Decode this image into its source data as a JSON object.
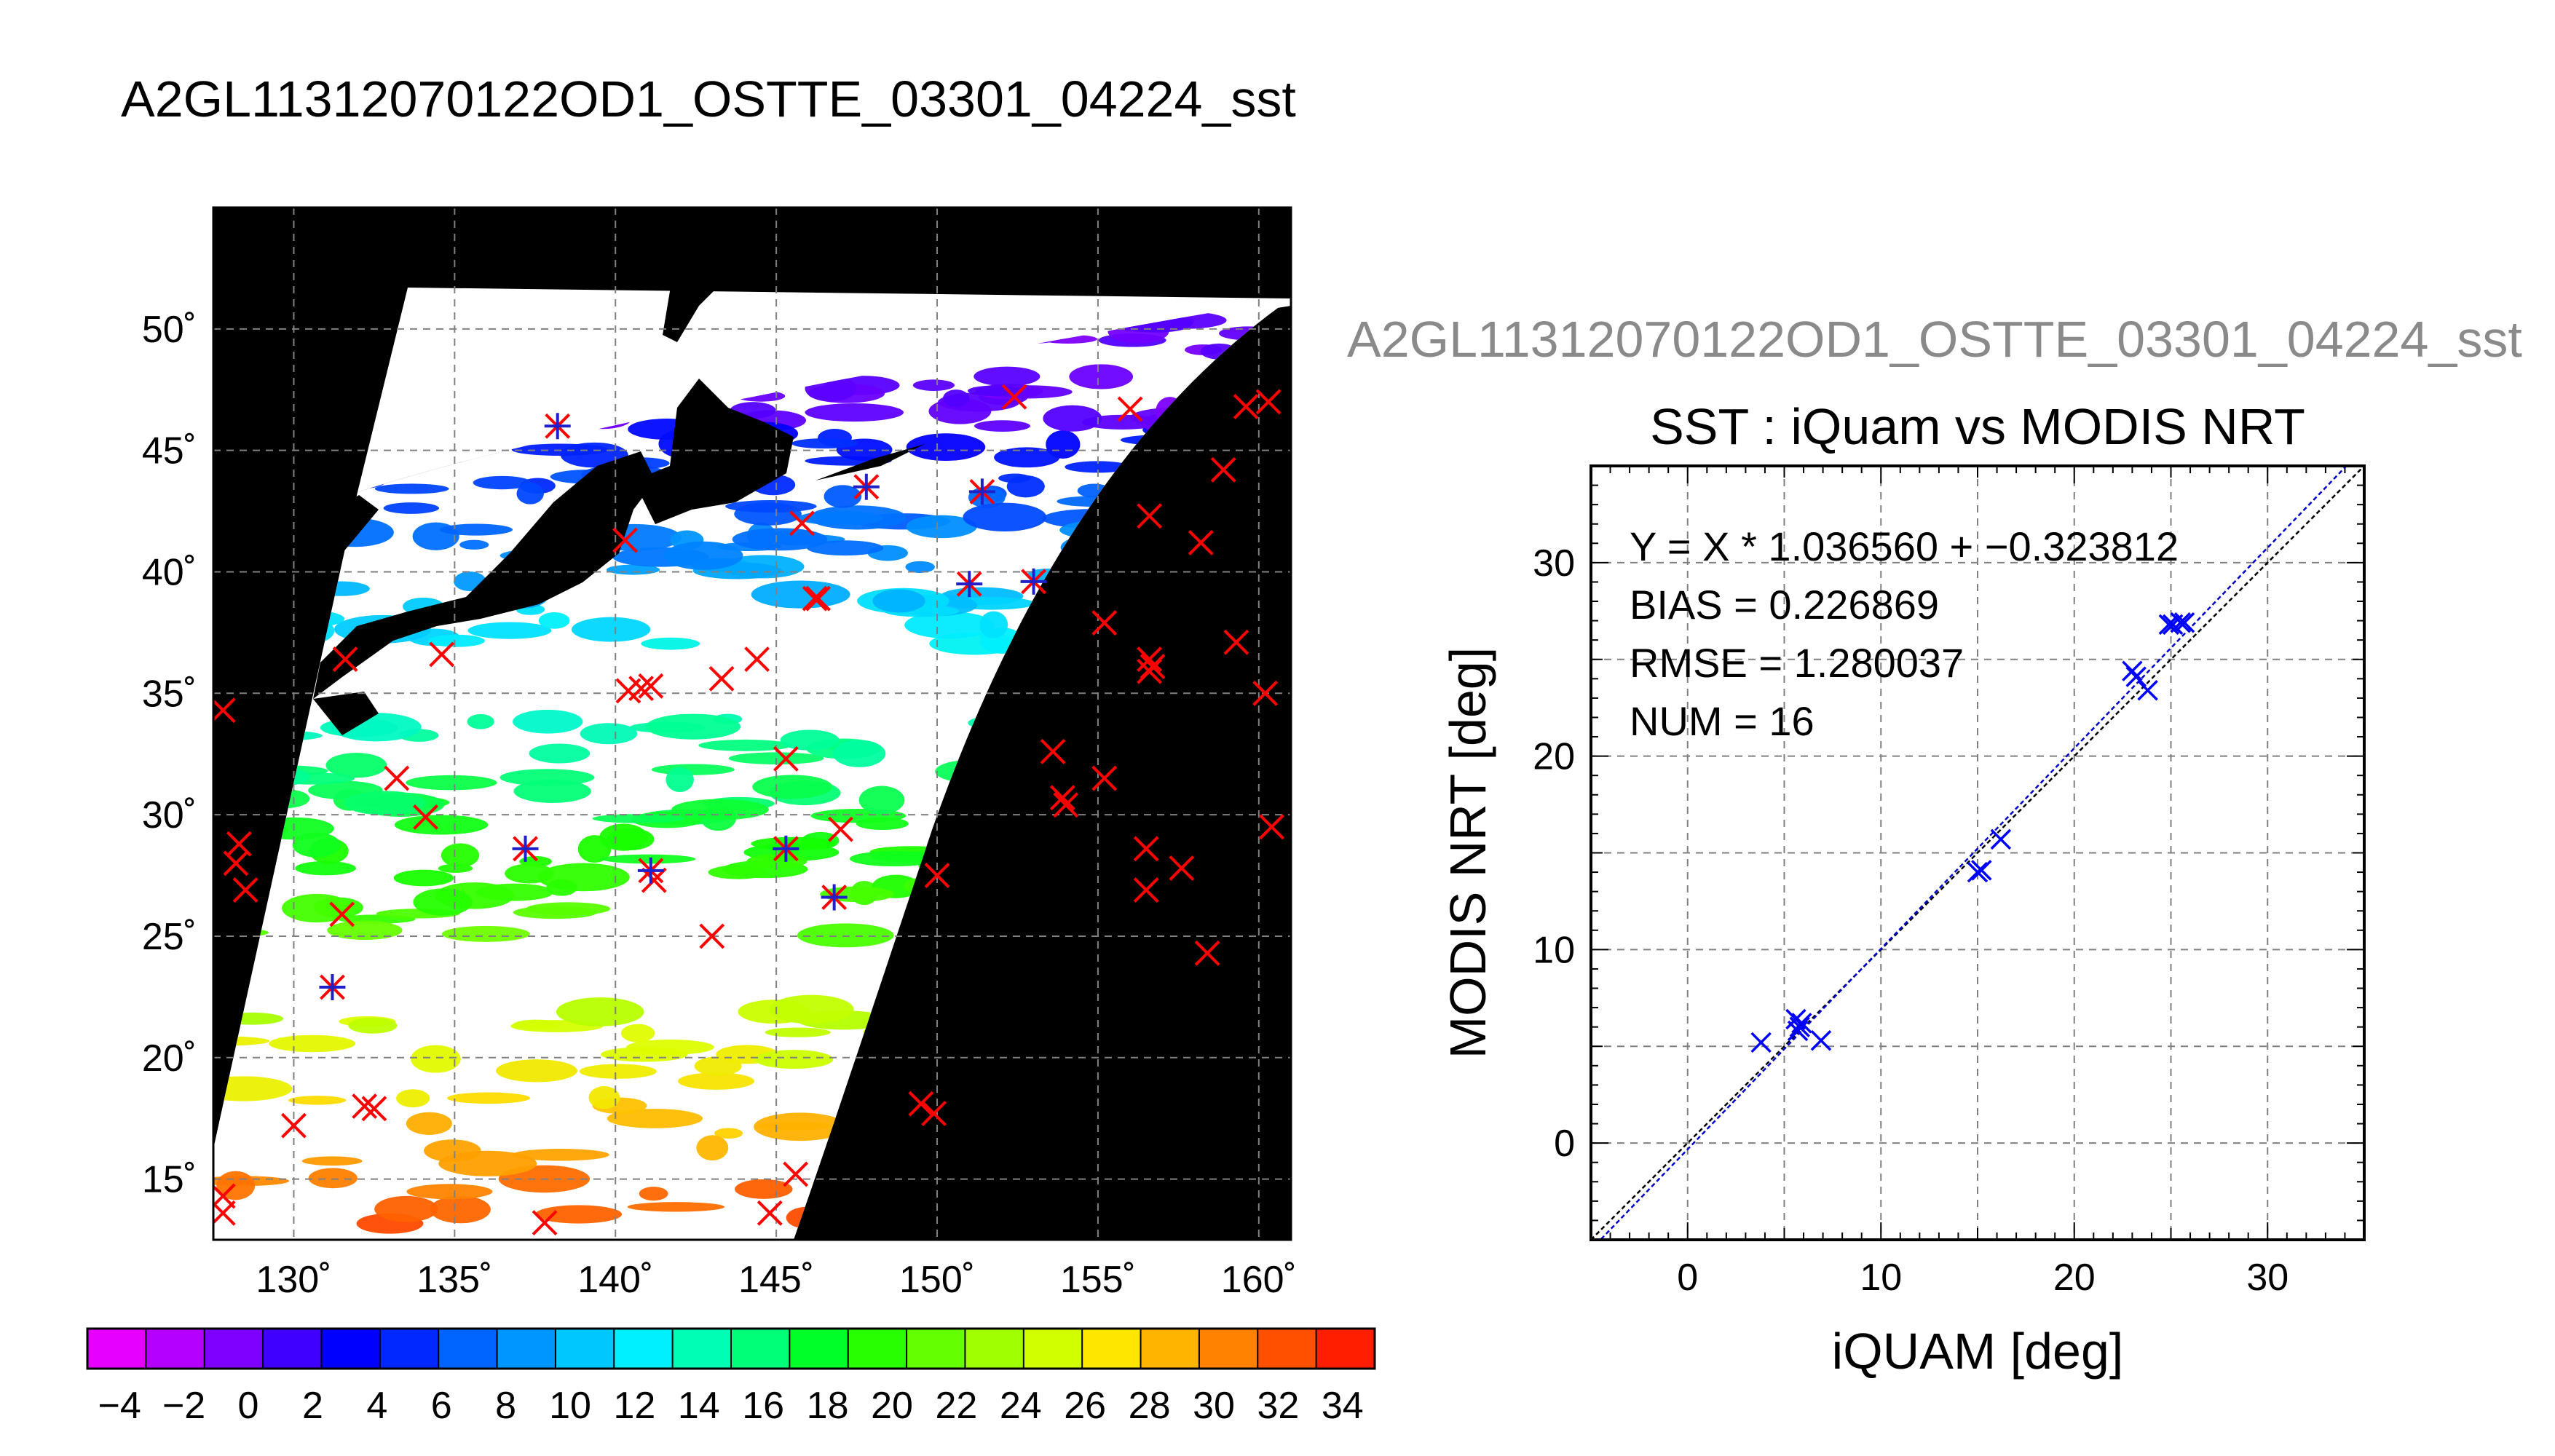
{
  "main_title": "A2GL11312070122OD1_OSTTE_03301_04224_sst",
  "scatter_title": "A2GL11312070122OD1_OSTTE_03301_04224_sst",
  "colors": {
    "map_background": "#000000",
    "cloud": "#ffffff",
    "insitu_marker": "#ff0000",
    "matchup_marker": "#2020c8",
    "scatter_marker": "#0000ff",
    "fit_line": "#0000cc",
    "identity_line": "#000000",
    "grid": "#808080",
    "subtitle": "#8a8a8a"
  },
  "chart_data": [
    {
      "type": "map",
      "xlabel": "",
      "ylabel": "",
      "lon_range": [
        127.5,
        161
      ],
      "lat_range": [
        12.5,
        55
      ],
      "lon_ticks": [
        "130˚",
        "135˚",
        "140˚",
        "145˚",
        "150˚",
        "155˚",
        "160˚"
      ],
      "lat_ticks": [
        "15˚",
        "20˚",
        "25˚",
        "30˚",
        "35˚",
        "40˚",
        "45˚",
        "50˚"
      ],
      "lon_tick_values": [
        130,
        135,
        140,
        145,
        150,
        155,
        160
      ],
      "lat_tick_values": [
        15,
        20,
        25,
        30,
        35,
        40,
        45,
        50
      ],
      "grid": true,
      "insitu_points": [
        [
          138.2,
          46.0
        ],
        [
          152.4,
          47.2
        ],
        [
          156.0,
          46.7
        ],
        [
          159.6,
          46.8
        ],
        [
          160.3,
          47.0
        ],
        [
          147.8,
          43.5
        ],
        [
          151.4,
          43.3
        ],
        [
          158.9,
          44.2
        ],
        [
          145.8,
          42.0
        ],
        [
          156.6,
          42.3
        ],
        [
          140.3,
          41.3
        ],
        [
          158.2,
          41.2
        ],
        [
          151.0,
          39.5
        ],
        [
          153.0,
          39.6
        ],
        [
          146.2,
          38.9
        ],
        [
          146.3,
          38.9
        ],
        [
          155.2,
          37.9
        ],
        [
          159.3,
          37.1
        ],
        [
          131.6,
          36.4
        ],
        [
          134.6,
          36.6
        ],
        [
          144.4,
          36.4
        ],
        [
          156.6,
          36.4
        ],
        [
          156.7,
          36.1
        ],
        [
          156.6,
          35.9
        ],
        [
          143.3,
          35.6
        ],
        [
          140.4,
          35.1
        ],
        [
          140.8,
          35.2
        ],
        [
          141.1,
          35.3
        ],
        [
          160.2,
          35.0
        ],
        [
          127.8,
          34.3
        ],
        [
          153.6,
          32.6
        ],
        [
          145.3,
          32.3
        ],
        [
          155.2,
          31.5
        ],
        [
          133.2,
          31.5
        ],
        [
          153.9,
          30.7
        ],
        [
          154.0,
          30.4
        ],
        [
          134.1,
          29.9
        ],
        [
          160.4,
          29.5
        ],
        [
          128.3,
          28.8
        ],
        [
          128.2,
          28.0
        ],
        [
          137.2,
          28.6
        ],
        [
          145.3,
          28.6
        ],
        [
          147.0,
          29.4
        ],
        [
          156.5,
          28.6
        ],
        [
          157.6,
          27.8
        ],
        [
          128.5,
          26.9
        ],
        [
          141.1,
          27.7
        ],
        [
          141.2,
          27.3
        ],
        [
          146.8,
          26.6
        ],
        [
          150.0,
          27.5
        ],
        [
          156.5,
          26.9
        ],
        [
          131.5,
          25.9
        ],
        [
          143.0,
          25.0
        ],
        [
          158.4,
          24.3
        ],
        [
          131.2,
          22.9
        ],
        [
          132.2,
          18.0
        ],
        [
          132.5,
          17.9
        ],
        [
          149.5,
          18.1
        ],
        [
          149.9,
          17.7
        ],
        [
          130.0,
          17.2
        ],
        [
          145.6,
          15.2
        ],
        [
          127.8,
          14.3
        ],
        [
          127.8,
          13.6
        ],
        [
          137.8,
          13.2
        ],
        [
          144.8,
          13.6
        ]
      ],
      "matchup_points": [
        [
          138.2,
          46.0
        ],
        [
          147.8,
          43.5
        ],
        [
          151.4,
          43.3
        ],
        [
          151.0,
          39.5
        ],
        [
          153.0,
          39.6
        ],
        [
          137.2,
          28.6
        ],
        [
          141.1,
          27.7
        ],
        [
          145.3,
          28.6
        ],
        [
          146.8,
          26.6
        ],
        [
          131.2,
          22.9
        ]
      ]
    },
    {
      "type": "scatter",
      "title": "SST : iQuam vs MODIS NRT",
      "xlabel": "iQUAM [deg]",
      "ylabel": "MODIS NRT [deg]",
      "xlim": [
        -5,
        35
      ],
      "ylim": [
        -5,
        35
      ],
      "xticks": [
        0,
        10,
        20,
        30
      ],
      "yticks": [
        0,
        10,
        20,
        30
      ],
      "grid": true,
      "annotations": [
        "Y = X * 1.036560 + −0.323812",
        "BIAS = 0.226869",
        "RMSE = 1.280037",
        "NUM = 16"
      ],
      "fit": {
        "slope": 1.03656,
        "intercept": -0.323812
      },
      "x": [
        3.8,
        5.6,
        5.7,
        5.8,
        5.9,
        6.9,
        15.0,
        15.2,
        16.2,
        23.0,
        23.2,
        23.8,
        24.9,
        25.1,
        25.5,
        25.7
      ],
      "y": [
        5.2,
        6.4,
        5.8,
        6.0,
        6.2,
        5.3,
        14.0,
        14.1,
        15.7,
        24.4,
        24.1,
        23.4,
        26.8,
        26.8,
        26.9,
        26.9
      ]
    },
    {
      "type": "colorbar",
      "range": [
        -5,
        35
      ],
      "tick_labels": [
        "−4",
        "−2",
        "0",
        "2",
        "4",
        "6",
        "8",
        "10",
        "12",
        "14",
        "16",
        "18",
        "20",
        "22",
        "24",
        "26",
        "28",
        "30",
        "32",
        "34"
      ],
      "tick_values": [
        -4,
        -2,
        0,
        2,
        4,
        6,
        8,
        10,
        12,
        14,
        16,
        18,
        20,
        22,
        24,
        26,
        28,
        30,
        32,
        34
      ],
      "colors": [
        "#e600ff",
        "#b400ff",
        "#8000ff",
        "#4000ff",
        "#0000ff",
        "#0028ff",
        "#0064ff",
        "#0096ff",
        "#00c8ff",
        "#00f0ff",
        "#00ffb4",
        "#00ff78",
        "#00ff28",
        "#28ff00",
        "#64ff00",
        "#a0ff00",
        "#d2ff00",
        "#ffe600",
        "#ffb400",
        "#ff8200",
        "#ff5000",
        "#ff1e00"
      ]
    }
  ]
}
